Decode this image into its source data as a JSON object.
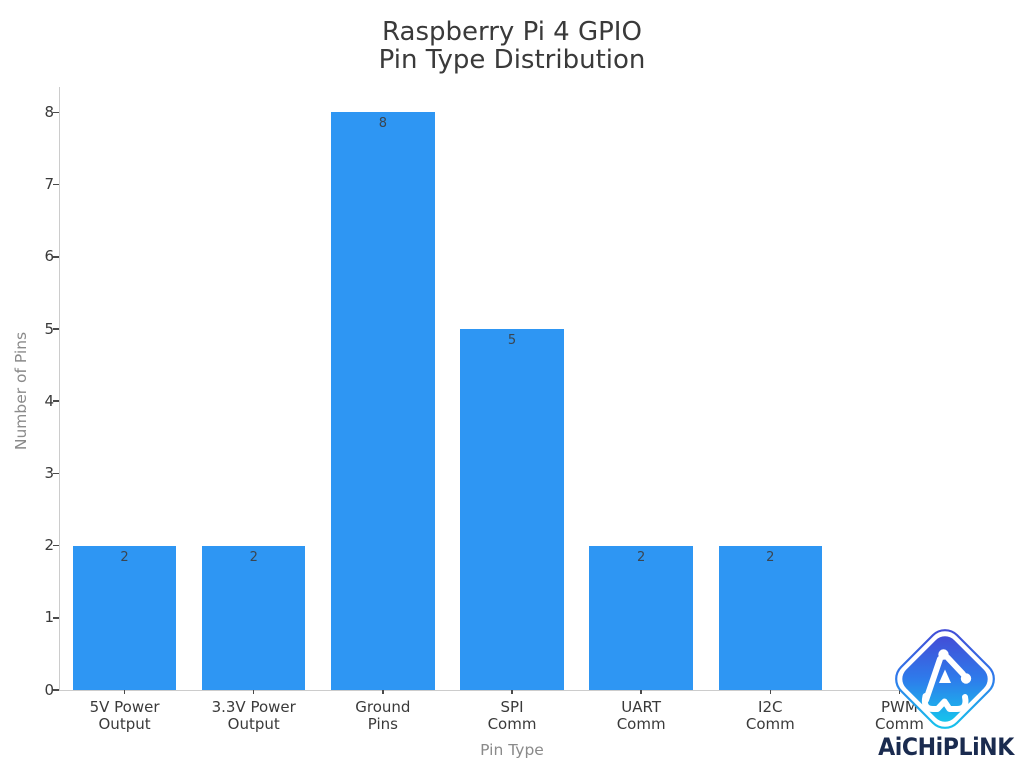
{
  "chart": {
    "title_line1": "Raspberry Pi 4 GPIO",
    "title_line2": "Pin Type Distribution"
  },
  "chart_data": {
    "type": "bar",
    "title": "Raspberry Pi 4 GPIO\nPin Type Distribution",
    "categories": [
      "5V Power\nOutput",
      "3.3V Power\nOutput",
      "Ground\nPins",
      "SPI\nComm",
      "UART\nComm",
      "I2C\nComm",
      "PWM\nComm"
    ],
    "values": [
      2,
      2,
      8,
      5,
      2,
      2,
      0
    ],
    "bar_value_labels": [
      "2",
      "2",
      "8",
      "5",
      "2",
      "2",
      ""
    ],
    "xlabel": "Pin Type",
    "ylabel": "Number of Pins",
    "yticks": [
      0,
      1,
      2,
      3,
      4,
      5,
      6,
      7,
      8
    ],
    "ylim": [
      0,
      8.35
    ],
    "grid": false,
    "legend": null,
    "bar_color": "#2e96f3"
  },
  "watermark": {
    "brand": "AiCHiPLiNK"
  },
  "colors": {
    "background": "#ffffff",
    "bar": "#2e96f3",
    "title_text": "#3a3a3a",
    "tick_label_text": "#3a3a3a",
    "bar_value_text": "#3a4550",
    "axis_title_text": "#8a8a8a",
    "spine": "#cccccc",
    "tick_mark": "#4a4a4a",
    "brand_text": "#1a2b4f",
    "logo_gradient_top": "#4547d4",
    "logo_gradient_mid": "#2e7beb",
    "logo_gradient_bottom": "#14cdec"
  },
  "icons": {
    "logo": "aichiplink-diamond-circuit-logo"
  }
}
